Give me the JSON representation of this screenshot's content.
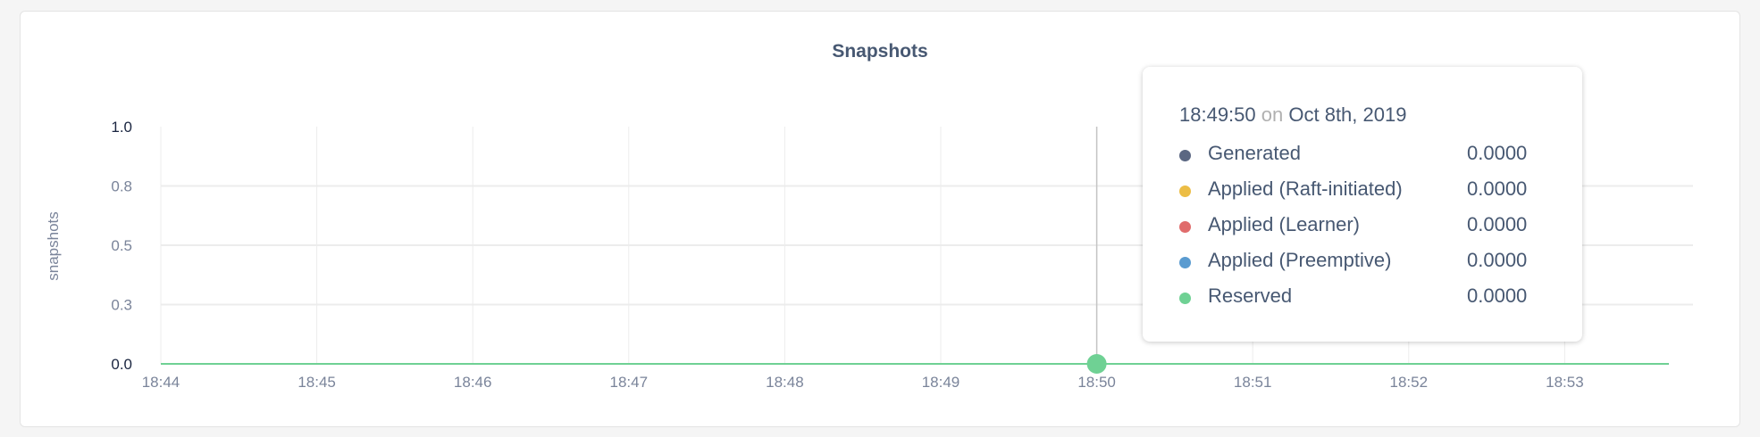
{
  "chart_data": {
    "type": "line",
    "title": "Snapshots",
    "ylabel": "snapshots",
    "xlabel": "",
    "x_tick_labels": [
      "18:44",
      "18:45",
      "18:46",
      "18:47",
      "18:48",
      "18:49",
      "18:50",
      "18:51",
      "18:52",
      "18:53"
    ],
    "y_ticks": [
      {
        "value": 0.0,
        "label": "0.0"
      },
      {
        "value": 0.25,
        "label": "0.3"
      },
      {
        "value": 0.5,
        "label": "0.5"
      },
      {
        "value": 0.75,
        "label": "0.8"
      },
      {
        "value": 1.0,
        "label": "1.0"
      }
    ],
    "ylim": [
      0,
      1
    ],
    "xlim": [
      "18:44",
      "18:53:40"
    ],
    "grid": true,
    "series": [
      {
        "name": "Generated",
        "color": "#5b6782",
        "x": [
          "18:44",
          "18:53:40"
        ],
        "values": [
          0,
          0
        ]
      },
      {
        "name": "Applied (Raft-initiated)",
        "color": "#ecbd45",
        "x": [
          "18:44",
          "18:53:40"
        ],
        "values": [
          0,
          0
        ]
      },
      {
        "name": "Applied (Learner)",
        "color": "#e06c6c",
        "x": [
          "18:44",
          "18:53:40"
        ],
        "values": [
          0,
          0
        ]
      },
      {
        "name": "Applied (Preemptive)",
        "color": "#5a9bd0",
        "x": [
          "18:44",
          "18:53:40"
        ],
        "values": [
          0,
          0
        ]
      },
      {
        "name": "Reserved",
        "color": "#6fd194",
        "x": [
          "18:44",
          "18:53:40"
        ],
        "values": [
          0,
          0
        ]
      }
    ],
    "hover": {
      "x": "18:50"
    }
  },
  "tooltip": {
    "time": "18:49:50",
    "on": "on",
    "date": "Oct 8th, 2019",
    "rows": [
      {
        "label": "Generated",
        "value": "0.0000",
        "color": "#5b6782"
      },
      {
        "label": "Applied (Raft-initiated)",
        "value": "0.0000",
        "color": "#ecbd45"
      },
      {
        "label": "Applied (Learner)",
        "value": "0.0000",
        "color": "#e06c6c"
      },
      {
        "label": "Applied (Preemptive)",
        "value": "0.0000",
        "color": "#5a9bd0"
      },
      {
        "label": "Reserved",
        "value": "0.0000",
        "color": "#6fd194"
      }
    ]
  }
}
